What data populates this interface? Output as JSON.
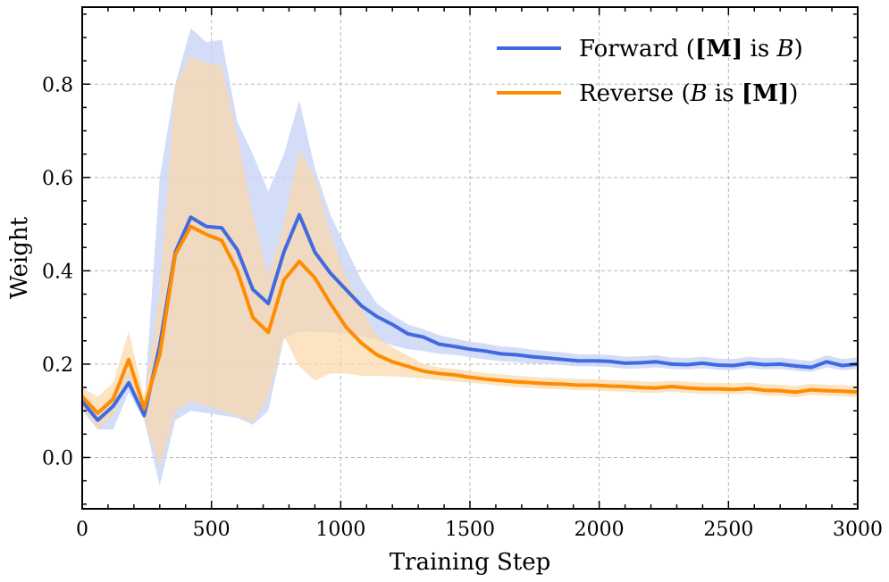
{
  "chart_data": {
    "type": "line",
    "xlabel": "Training Step",
    "ylabel": "Weight",
    "xlim": [
      0,
      3000
    ],
    "ylim": [
      -0.11,
      0.965
    ],
    "xticks": [
      0,
      500,
      1000,
      1500,
      2000,
      2500,
      3000
    ],
    "xtick_labels": [
      "0",
      "500",
      "1000",
      "1500",
      "2000",
      "2500",
      "3000"
    ],
    "yticks": [
      0.0,
      0.2,
      0.4,
      0.6,
      0.8
    ],
    "ytick_labels": [
      "0.0",
      "0.2",
      "0.4",
      "0.6",
      "0.8"
    ],
    "grid": true,
    "legend_position": "top-right",
    "series": [
      {
        "name": "Forward ([M] is B)",
        "legend": {
          "pre": "Forward (",
          "bold": "[M]",
          "mid": " is ",
          "ital": "B",
          "post": ")"
        },
        "color": "#4169E1",
        "band_color": "#C9D4F6",
        "x": [
          0,
          60,
          120,
          180,
          240,
          300,
          360,
          420,
          480,
          540,
          600,
          660,
          720,
          780,
          840,
          900,
          960,
          1020,
          1080,
          1140,
          1200,
          1260,
          1320,
          1380,
          1440,
          1500,
          1560,
          1620,
          1680,
          1740,
          1800,
          1860,
          1920,
          1980,
          2040,
          2100,
          2160,
          2220,
          2280,
          2340,
          2400,
          2460,
          2520,
          2580,
          2640,
          2700,
          2760,
          2820,
          2880,
          2940,
          3000
        ],
        "y": [
          0.12,
          0.08,
          0.11,
          0.16,
          0.09,
          0.24,
          0.44,
          0.515,
          0.495,
          0.492,
          0.445,
          0.36,
          0.33,
          0.44,
          0.52,
          0.44,
          0.395,
          0.36,
          0.325,
          0.302,
          0.285,
          0.265,
          0.258,
          0.243,
          0.238,
          0.232,
          0.228,
          0.222,
          0.22,
          0.216,
          0.213,
          0.21,
          0.207,
          0.207,
          0.206,
          0.202,
          0.203,
          0.205,
          0.2,
          0.199,
          0.202,
          0.198,
          0.197,
          0.202,
          0.199,
          0.2,
          0.196,
          0.193,
          0.205,
          0.197,
          0.2
        ],
        "lower": [
          0.1,
          0.06,
          0.06,
          0.14,
          0.08,
          -0.06,
          0.08,
          0.1,
          0.095,
          0.09,
          0.085,
          0.07,
          0.1,
          0.255,
          0.27,
          0.27,
          0.268,
          0.265,
          0.26,
          0.252,
          0.24,
          0.232,
          0.228,
          0.222,
          0.22,
          0.215,
          0.21,
          0.206,
          0.204,
          0.201,
          0.2,
          0.198,
          0.195,
          0.195,
          0.194,
          0.19,
          0.191,
          0.193,
          0.19,
          0.189,
          0.191,
          0.188,
          0.187,
          0.192,
          0.189,
          0.19,
          0.186,
          0.183,
          0.193,
          0.187,
          0.19
        ],
        "upper": [
          0.14,
          0.1,
          0.14,
          0.19,
          0.11,
          0.6,
          0.8,
          0.92,
          0.89,
          0.895,
          0.72,
          0.65,
          0.57,
          0.65,
          0.765,
          0.62,
          0.52,
          0.45,
          0.38,
          0.33,
          0.305,
          0.285,
          0.275,
          0.262,
          0.255,
          0.248,
          0.244,
          0.238,
          0.236,
          0.231,
          0.228,
          0.225,
          0.221,
          0.221,
          0.22,
          0.216,
          0.217,
          0.219,
          0.214,
          0.213,
          0.216,
          0.212,
          0.211,
          0.216,
          0.213,
          0.214,
          0.21,
          0.207,
          0.219,
          0.211,
          0.215
        ]
      },
      {
        "name": "Reverse (B is [M])",
        "legend": {
          "pre": "Reverse (",
          "ital": "B",
          "mid": " is ",
          "bold": "[M]",
          "post": ")"
        },
        "color": "#FF8C00",
        "band_color": "#FBD7A8",
        "x": [
          0,
          60,
          120,
          180,
          240,
          300,
          360,
          420,
          480,
          540,
          600,
          660,
          720,
          780,
          840,
          900,
          960,
          1020,
          1080,
          1140,
          1200,
          1260,
          1320,
          1380,
          1440,
          1500,
          1560,
          1620,
          1680,
          1740,
          1800,
          1860,
          1920,
          1980,
          2040,
          2100,
          2160,
          2220,
          2280,
          2340,
          2400,
          2460,
          2520,
          2580,
          2640,
          2700,
          2760,
          2820,
          2880,
          2940,
          3000
        ],
        "y": [
          0.13,
          0.095,
          0.125,
          0.21,
          0.105,
          0.22,
          0.435,
          0.495,
          0.478,
          0.465,
          0.4,
          0.3,
          0.268,
          0.38,
          0.42,
          0.385,
          0.33,
          0.28,
          0.245,
          0.22,
          0.205,
          0.195,
          0.185,
          0.18,
          0.177,
          0.172,
          0.168,
          0.165,
          0.162,
          0.16,
          0.158,
          0.157,
          0.155,
          0.155,
          0.153,
          0.152,
          0.15,
          0.149,
          0.152,
          0.149,
          0.147,
          0.147,
          0.146,
          0.148,
          0.144,
          0.143,
          0.14,
          0.145,
          0.143,
          0.142,
          0.14
        ],
        "lower": [
          0.11,
          0.06,
          0.09,
          0.17,
          0.08,
          -0.02,
          0.1,
          0.12,
          0.11,
          0.1,
          0.09,
          0.075,
          0.13,
          0.26,
          0.195,
          0.165,
          0.18,
          0.18,
          0.175,
          0.175,
          0.174,
          0.172,
          0.169,
          0.166,
          0.163,
          0.16,
          0.157,
          0.154,
          0.151,
          0.149,
          0.147,
          0.146,
          0.144,
          0.144,
          0.142,
          0.141,
          0.139,
          0.138,
          0.141,
          0.138,
          0.136,
          0.136,
          0.135,
          0.137,
          0.133,
          0.132,
          0.129,
          0.134,
          0.132,
          0.131,
          0.129
        ],
        "upper": [
          0.15,
          0.13,
          0.16,
          0.27,
          0.13,
          0.35,
          0.8,
          0.86,
          0.845,
          0.84,
          0.69,
          0.52,
          0.39,
          0.5,
          0.66,
          0.6,
          0.48,
          0.39,
          0.32,
          0.26,
          0.236,
          0.218,
          0.2,
          0.193,
          0.19,
          0.185,
          0.181,
          0.178,
          0.175,
          0.173,
          0.171,
          0.17,
          0.168,
          0.168,
          0.166,
          0.165,
          0.163,
          0.162,
          0.165,
          0.162,
          0.16,
          0.16,
          0.159,
          0.161,
          0.157,
          0.156,
          0.153,
          0.158,
          0.156,
          0.155,
          0.153
        ]
      }
    ]
  }
}
